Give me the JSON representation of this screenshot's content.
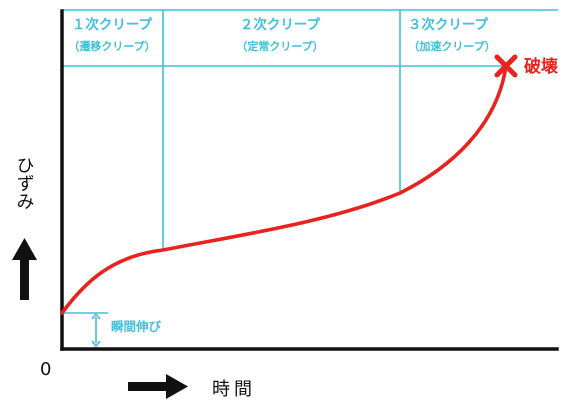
{
  "stages": [
    {
      "label": "１次クリープ",
      "sublabel": "（遷移クリープ）"
    },
    {
      "label": "２次クリープ",
      "sublabel": "（定常クリープ）"
    },
    {
      "label": "３次クリープ",
      "sublabel": "（加速クリープ）"
    }
  ],
  "failure_label": "破壊",
  "instant_strain_label": "瞬間伸び",
  "y_axis_label": "ひずみ",
  "x_axis_label": "時間",
  "origin_label": "0",
  "colors": {
    "curve": "#e8231f",
    "guides": "#3fc0dc",
    "axes": "#111111"
  }
}
